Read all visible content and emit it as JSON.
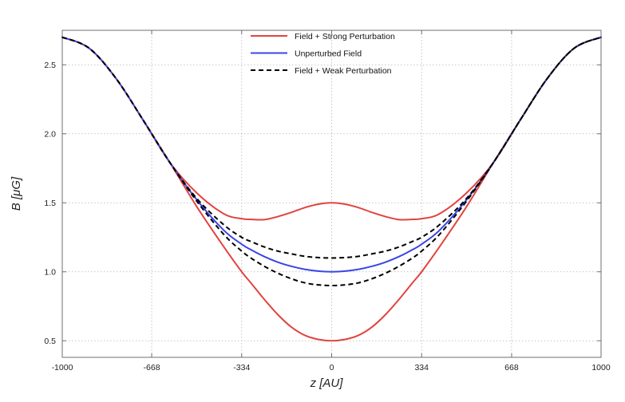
{
  "chart_data": {
    "type": "line",
    "xlabel": "z [AU]",
    "ylabel": "B [μG]",
    "xlim": [
      -1000,
      1000
    ],
    "ylim": [
      0.38,
      2.75
    ],
    "xticks": [
      -1000,
      -668,
      -334,
      0,
      334,
      668,
      1000
    ],
    "xtick_labels": [
      "-1000",
      "-668",
      "-334",
      "0",
      "334",
      "668",
      "1000"
    ],
    "yticks": [
      0.5,
      1.0,
      1.5,
      2.0,
      2.5
    ],
    "ytick_labels": [
      "0.5",
      "1.0",
      "1.5",
      "2.0",
      "2.5"
    ],
    "grid": true,
    "legend_position": "top-center",
    "legend": [
      {
        "name": "Field + Strong Perturbation",
        "color": "#e0443f",
        "dash": "solid"
      },
      {
        "name": "Unperturbed Field",
        "color": "#3b45e6",
        "dash": "solid"
      },
      {
        "name": "Field + Weak Perturbation",
        "color": "#000000",
        "dash": "dashed"
      }
    ],
    "series": [
      {
        "name": "Field + Strong Perturbation (upper)",
        "color": "#e0443f",
        "dash": "solid",
        "x": [
          -1000,
          -900,
          -800,
          -700,
          -600,
          -500,
          -400,
          -334,
          -300,
          -250,
          -200,
          -150,
          -100,
          -50,
          0,
          50,
          100,
          150,
          200,
          250,
          300,
          334,
          400,
          500,
          600,
          700,
          800,
          900,
          1000
        ],
        "y": [
          2.7,
          2.62,
          2.4,
          2.1,
          1.79,
          1.57,
          1.42,
          1.385,
          1.38,
          1.378,
          1.4,
          1.43,
          1.465,
          1.49,
          1.5,
          1.49,
          1.465,
          1.43,
          1.4,
          1.378,
          1.38,
          1.385,
          1.42,
          1.57,
          1.79,
          2.1,
          2.4,
          2.62,
          2.7
        ]
      },
      {
        "name": "Field + Strong Perturbation (lower)",
        "color": "#e0443f",
        "dash": "solid",
        "x": [
          -1000,
          -900,
          -800,
          -700,
          -600,
          -500,
          -400,
          -334,
          -300,
          -250,
          -200,
          -150,
          -100,
          -50,
          0,
          50,
          100,
          150,
          200,
          250,
          300,
          334,
          400,
          500,
          600,
          700,
          800,
          900,
          1000
        ],
        "y": [
          2.7,
          2.62,
          2.4,
          2.1,
          1.79,
          1.47,
          1.18,
          1.0,
          0.92,
          0.8,
          0.69,
          0.6,
          0.54,
          0.51,
          0.5,
          0.51,
          0.54,
          0.6,
          0.69,
          0.8,
          0.92,
          1.0,
          1.18,
          1.47,
          1.79,
          2.1,
          2.4,
          2.62,
          2.7
        ]
      },
      {
        "name": "Unperturbed Field",
        "color": "#3b45e6",
        "dash": "solid",
        "x": [
          -1000,
          -900,
          -800,
          -700,
          -600,
          -500,
          -400,
          -334,
          -300,
          -250,
          -200,
          -150,
          -100,
          -50,
          0,
          50,
          100,
          150,
          200,
          250,
          300,
          334,
          400,
          500,
          600,
          700,
          800,
          900,
          1000
        ],
        "y": [
          2.7,
          2.62,
          2.4,
          2.1,
          1.79,
          1.52,
          1.3,
          1.2,
          1.16,
          1.11,
          1.07,
          1.04,
          1.018,
          1.005,
          1.0,
          1.005,
          1.018,
          1.04,
          1.07,
          1.11,
          1.16,
          1.2,
          1.3,
          1.52,
          1.79,
          2.1,
          2.4,
          2.62,
          2.7
        ]
      },
      {
        "name": "Field + Weak Perturbation (upper)",
        "color": "#000000",
        "dash": "dashed",
        "x": [
          -1000,
          -900,
          -800,
          -700,
          -600,
          -500,
          -400,
          -334,
          -300,
          -250,
          -200,
          -150,
          -100,
          -50,
          0,
          50,
          100,
          150,
          200,
          250,
          300,
          334,
          400,
          500,
          600,
          700,
          800,
          900,
          1000
        ],
        "y": [
          2.7,
          2.62,
          2.4,
          2.1,
          1.79,
          1.53,
          1.34,
          1.25,
          1.22,
          1.18,
          1.15,
          1.13,
          1.112,
          1.103,
          1.1,
          1.103,
          1.112,
          1.13,
          1.15,
          1.18,
          1.22,
          1.25,
          1.34,
          1.53,
          1.79,
          2.1,
          2.4,
          2.62,
          2.7
        ]
      },
      {
        "name": "Field + Weak Perturbation (lower)",
        "color": "#000000",
        "dash": "dashed",
        "x": [
          -1000,
          -900,
          -800,
          -700,
          -600,
          -500,
          -400,
          -334,
          -300,
          -250,
          -200,
          -150,
          -100,
          -50,
          0,
          50,
          100,
          150,
          200,
          250,
          300,
          334,
          400,
          500,
          600,
          700,
          800,
          900,
          1000
        ],
        "y": [
          2.7,
          2.62,
          2.4,
          2.1,
          1.79,
          1.51,
          1.27,
          1.15,
          1.1,
          1.04,
          0.99,
          0.95,
          0.92,
          0.905,
          0.9,
          0.905,
          0.92,
          0.95,
          0.99,
          1.04,
          1.1,
          1.15,
          1.27,
          1.51,
          1.79,
          2.1,
          2.4,
          2.62,
          2.7
        ]
      }
    ]
  }
}
